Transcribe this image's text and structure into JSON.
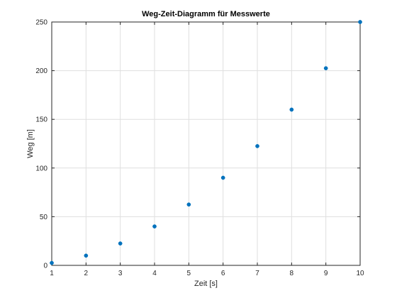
{
  "chart_data": {
    "type": "scatter",
    "title": "Weg-Zeit-Diagramm für Messwerte",
    "xlabel": "Zeit [s]",
    "ylabel": "Weg [m]",
    "xlim": [
      1,
      10
    ],
    "ylim": [
      0,
      250
    ],
    "xticks": [
      1,
      2,
      3,
      4,
      5,
      6,
      7,
      8,
      9,
      10
    ],
    "yticks": [
      0,
      50,
      100,
      150,
      200,
      250
    ],
    "grid": true,
    "series": [
      {
        "x": [
          1,
          2,
          3,
          4,
          5,
          6,
          7,
          8,
          9,
          10
        ],
        "y": [
          2.5,
          10,
          22.5,
          40,
          62.5,
          90,
          122.5,
          160,
          202.5,
          250
        ],
        "color": "#0072BD"
      }
    ]
  },
  "colors": {
    "axis": "#262626",
    "grid": "#dfdfdf",
    "marker": "#0072BD"
  }
}
